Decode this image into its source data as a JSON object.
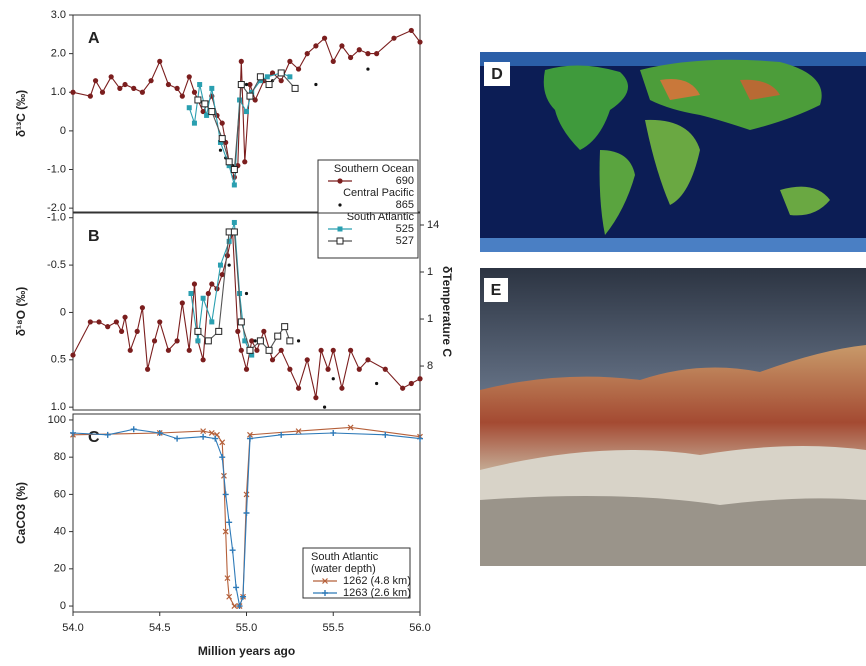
{
  "chart_data": [
    {
      "type": "line",
      "panel_label": "A",
      "ylabel": "δ¹³C (‰)",
      "xlim": [
        54.0,
        56.0
      ],
      "ylim": [
        -2.1,
        3.0
      ],
      "yticks": [
        {
          "value": 3,
          "label": "3.0"
        },
        {
          "value": 2,
          "label": "2.0"
        },
        {
          "value": 1,
          "label": "1.0"
        },
        0,
        {
          "value": -1,
          "label": "-1.0"
        },
        {
          "value": -2,
          "label": "-2.0"
        }
      ],
      "legend_groups": [
        "Southern Ocean",
        "Central Pacific",
        "South Atlantic"
      ],
      "series": [
        {
          "name": "690",
          "color": "#7b1e1e",
          "marker": "circle",
          "line": true,
          "x": [
            54.0,
            54.1,
            54.13,
            54.17,
            54.22,
            54.27,
            54.3,
            54.35,
            54.4,
            54.45,
            54.5,
            54.55,
            54.6,
            54.63,
            54.67,
            54.7,
            54.75,
            54.8,
            54.83,
            54.86,
            54.88,
            54.9,
            54.93,
            54.95,
            54.97,
            54.99,
            55.02,
            55.05,
            55.1,
            55.15,
            55.2,
            55.25,
            55.3,
            55.35,
            55.4,
            55.45,
            55.5,
            55.55,
            55.6,
            55.65,
            55.7,
            55.75,
            55.85,
            55.95,
            56.0
          ],
          "values": [
            1.0,
            0.9,
            1.3,
            1.0,
            1.4,
            1.1,
            1.2,
            1.1,
            1.0,
            1.3,
            1.8,
            1.2,
            1.1,
            0.9,
            1.4,
            1.0,
            0.5,
            0.9,
            0.4,
            0.2,
            -0.3,
            -0.8,
            -1.2,
            -0.9,
            1.8,
            -0.8,
            1.2,
            0.8,
            1.3,
            1.5,
            1.3,
            1.8,
            1.6,
            2.0,
            2.2,
            2.4,
            1.8,
            2.2,
            1.9,
            2.1,
            2.0,
            2.0,
            2.4,
            2.6,
            2.3
          ]
        },
        {
          "name": "865",
          "color": "#111111",
          "marker": "dot",
          "line": false,
          "x": [
            54.85,
            54.88,
            54.92,
            55.0,
            55.15,
            55.4,
            55.7
          ],
          "values": [
            -0.5,
            -0.7,
            -0.9,
            1.2,
            1.3,
            1.2,
            1.6
          ]
        },
        {
          "name": "525",
          "color": "#2a9fb0",
          "marker": "square",
          "line": true,
          "x": [
            54.67,
            54.7,
            54.73,
            54.77,
            54.8,
            54.85,
            54.9,
            54.93,
            54.96,
            55.0,
            55.03,
            55.08,
            55.12,
            55.2,
            55.25
          ],
          "values": [
            0.6,
            0.2,
            1.2,
            0.4,
            1.1,
            -0.3,
            -0.9,
            -1.4,
            0.8,
            0.5,
            1.0,
            1.3,
            1.4,
            1.5,
            1.4
          ]
        },
        {
          "name": "527",
          "color": "#555555",
          "marker": "open-square",
          "line": true,
          "x": [
            54.72,
            54.76,
            54.8,
            54.86,
            54.9,
            54.93,
            54.97,
            55.02,
            55.08,
            55.13,
            55.2,
            55.28
          ],
          "values": [
            0.8,
            0.7,
            0.5,
            -0.2,
            -0.8,
            -1.0,
            1.2,
            0.9,
            1.4,
            1.2,
            1.5,
            1.1
          ]
        }
      ]
    },
    {
      "type": "line",
      "panel_label": "B",
      "ylabel": "δ¹⁸O (‰)",
      "y2label": "δTemperature C",
      "xlim": [
        54.0,
        56.0
      ],
      "ylim": [
        1.03,
        -1.05
      ],
      "yticks": [
        {
          "value": -1,
          "label": "-1.0"
        },
        {
          "value": -0.5,
          "label": "-0.5"
        },
        0,
        0.5,
        {
          "value": 1,
          "label": "1.0"
        }
      ],
      "y2lim": [
        6.13,
        14.51
      ],
      "y2ticks": [
        14,
        {
          "value": 12,
          "label": "1"
        },
        {
          "value": 10,
          "label": "1"
        },
        8
      ],
      "series": [
        {
          "name": "690",
          "color": "#7b1e1e",
          "marker": "circle",
          "line": true,
          "x": [
            54.0,
            54.1,
            54.15,
            54.2,
            54.25,
            54.28,
            54.3,
            54.33,
            54.37,
            54.4,
            54.43,
            54.47,
            54.5,
            54.55,
            54.6,
            54.63,
            54.67,
            54.7,
            54.72,
            54.75,
            54.78,
            54.8,
            54.83,
            54.86,
            54.89,
            54.92,
            54.95,
            54.97,
            55.0,
            55.03,
            55.06,
            55.1,
            55.15,
            55.2,
            55.25,
            55.3,
            55.35,
            55.4,
            55.43,
            55.47,
            55.5,
            55.55,
            55.6,
            55.65,
            55.7,
            55.8,
            55.9,
            55.95,
            56.0
          ],
          "values": [
            0.45,
            0.1,
            0.1,
            0.15,
            0.1,
            0.2,
            0.05,
            0.4,
            0.2,
            -0.05,
            0.6,
            0.3,
            0.1,
            0.4,
            0.3,
            -0.1,
            0.4,
            -0.3,
            0.3,
            0.5,
            -0.2,
            -0.3,
            -0.25,
            -0.4,
            -0.6,
            -0.85,
            0.2,
            0.4,
            0.6,
            0.3,
            0.4,
            0.2,
            0.5,
            0.4,
            0.6,
            0.8,
            0.5,
            0.9,
            0.4,
            0.6,
            0.4,
            0.8,
            0.4,
            0.6,
            0.5,
            0.6,
            0.8,
            0.75,
            0.7
          ]
        },
        {
          "name": "865",
          "color": "#111111",
          "marker": "dot",
          "line": false,
          "x": [
            54.9,
            55.0,
            55.05,
            55.3,
            55.45,
            55.5,
            55.75
          ],
          "values": [
            -0.5,
            -0.2,
            0.3,
            0.3,
            1.0,
            0.7,
            0.75
          ]
        },
        {
          "name": "525",
          "color": "#2a9fb0",
          "marker": "square",
          "line": true,
          "x": [
            54.68,
            54.72,
            54.75,
            54.8,
            54.85,
            54.9,
            54.93,
            54.96,
            54.99,
            55.03
          ],
          "values": [
            -0.2,
            0.3,
            -0.15,
            0.1,
            -0.5,
            -0.75,
            -0.95,
            -0.2,
            0.3,
            0.45
          ]
        },
        {
          "name": "527",
          "color": "#555555",
          "marker": "open-square",
          "line": true,
          "x": [
            54.72,
            54.78,
            54.84,
            54.9,
            54.93,
            54.97,
            55.02,
            55.08,
            55.13,
            55.18,
            55.22,
            55.25
          ],
          "values": [
            0.2,
            0.3,
            0.2,
            -0.85,
            -0.85,
            0.1,
            0.4,
            0.3,
            0.4,
            0.25,
            0.15,
            0.3
          ]
        }
      ]
    },
    {
      "type": "line",
      "panel_label": "C",
      "ylabel": "CaCO3 (%)",
      "xlabel": "Million years ago",
      "xlim": [
        54.0,
        56.0
      ],
      "ylim": [
        -3.2,
        103.2
      ],
      "xticks": [
        {
          "value": 54,
          "label": "54.0"
        },
        54.5,
        {
          "value": 55,
          "label": "55.0"
        },
        55.5,
        {
          "value": 56,
          "label": "56.0"
        }
      ],
      "yticks": [
        0,
        20,
        40,
        60,
        80,
        100
      ],
      "legend_title": [
        "South Atlantic",
        "(water depth)"
      ],
      "series": [
        {
          "name": "1262 (4.8 km)",
          "color": "#b5603a",
          "marker": "x",
          "line": true,
          "x": [
            54.0,
            54.5,
            54.75,
            54.8,
            54.83,
            54.86,
            54.87,
            54.88,
            54.89,
            54.9,
            54.93,
            54.96,
            54.98,
            55.0,
            55.02,
            55.3,
            55.6,
            56.0
          ],
          "values": [
            92,
            93,
            94,
            93,
            92,
            88,
            70,
            40,
            15,
            5,
            0,
            0,
            5,
            60,
            92,
            94,
            96,
            91
          ]
        },
        {
          "name": "1263 (2.6 km)",
          "color": "#2e7ab8",
          "marker": "plus",
          "line": true,
          "x": [
            54.0,
            54.2,
            54.35,
            54.5,
            54.6,
            54.75,
            54.82,
            54.86,
            54.88,
            54.9,
            54.92,
            54.94,
            54.96,
            54.98,
            55.0,
            55.02,
            55.2,
            55.5,
            55.8,
            56.0
          ],
          "values": [
            93,
            92,
            95,
            93,
            90,
            91,
            90,
            80,
            60,
            45,
            30,
            10,
            0,
            5,
            50,
            90,
            92,
            93,
            92,
            90
          ]
        }
      ]
    }
  ],
  "images": [
    {
      "label": "D"
    },
    {
      "label": "E"
    }
  ]
}
